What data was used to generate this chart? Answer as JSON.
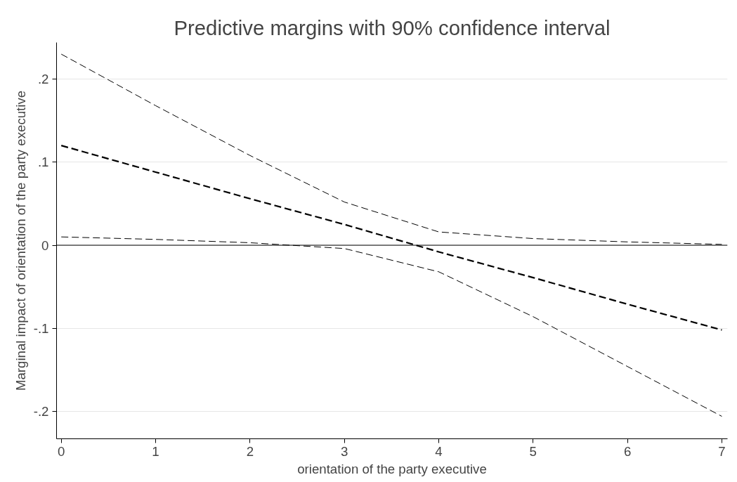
{
  "chart_data": {
    "type": "line",
    "title": "Predictive margins with 90% confidence interval",
    "xlabel": "orientation of the party executive",
    "ylabel": "Marginal impact of orientation of the party executive",
    "x": [
      0,
      1,
      2,
      3,
      4,
      5,
      6,
      7
    ],
    "series": [
      {
        "color": "#000000",
        "values": [
          0.23,
          0.168,
          0.108,
          0.052,
          0.016,
          0.008,
          0.004,
          0.001
        ]
      },
      {
        "color": "#000000",
        "values": [
          0.12,
          0.088,
          0.056,
          0.025,
          -0.008,
          -0.039,
          -0.071,
          -0.102
        ]
      },
      {
        "color": "#000000",
        "values": [
          0.01,
          0.007,
          0.003,
          -0.004,
          -0.032,
          -0.086,
          -0.146,
          -0.206
        ]
      }
    ],
    "xlim": [
      -0.05,
      7.06
    ],
    "ylim": [
      -0.233,
      0.244
    ],
    "xticks": [
      0,
      1,
      2,
      3,
      4,
      5,
      6,
      7
    ],
    "yticks": [
      {
        "value": -0.2,
        "label": "-.2"
      },
      {
        "value": -0.1,
        "label": "-.1"
      },
      0,
      {
        "value": 0.1,
        "label": ".1"
      },
      {
        "value": 0.2,
        "label": ".2"
      }
    ],
    "ref_lines": [
      {
        "axis": "y",
        "value": 0,
        "color": "#000000",
        "line_style": "solid"
      }
    ],
    "grid": "y",
    "line_style": "dashed"
  }
}
